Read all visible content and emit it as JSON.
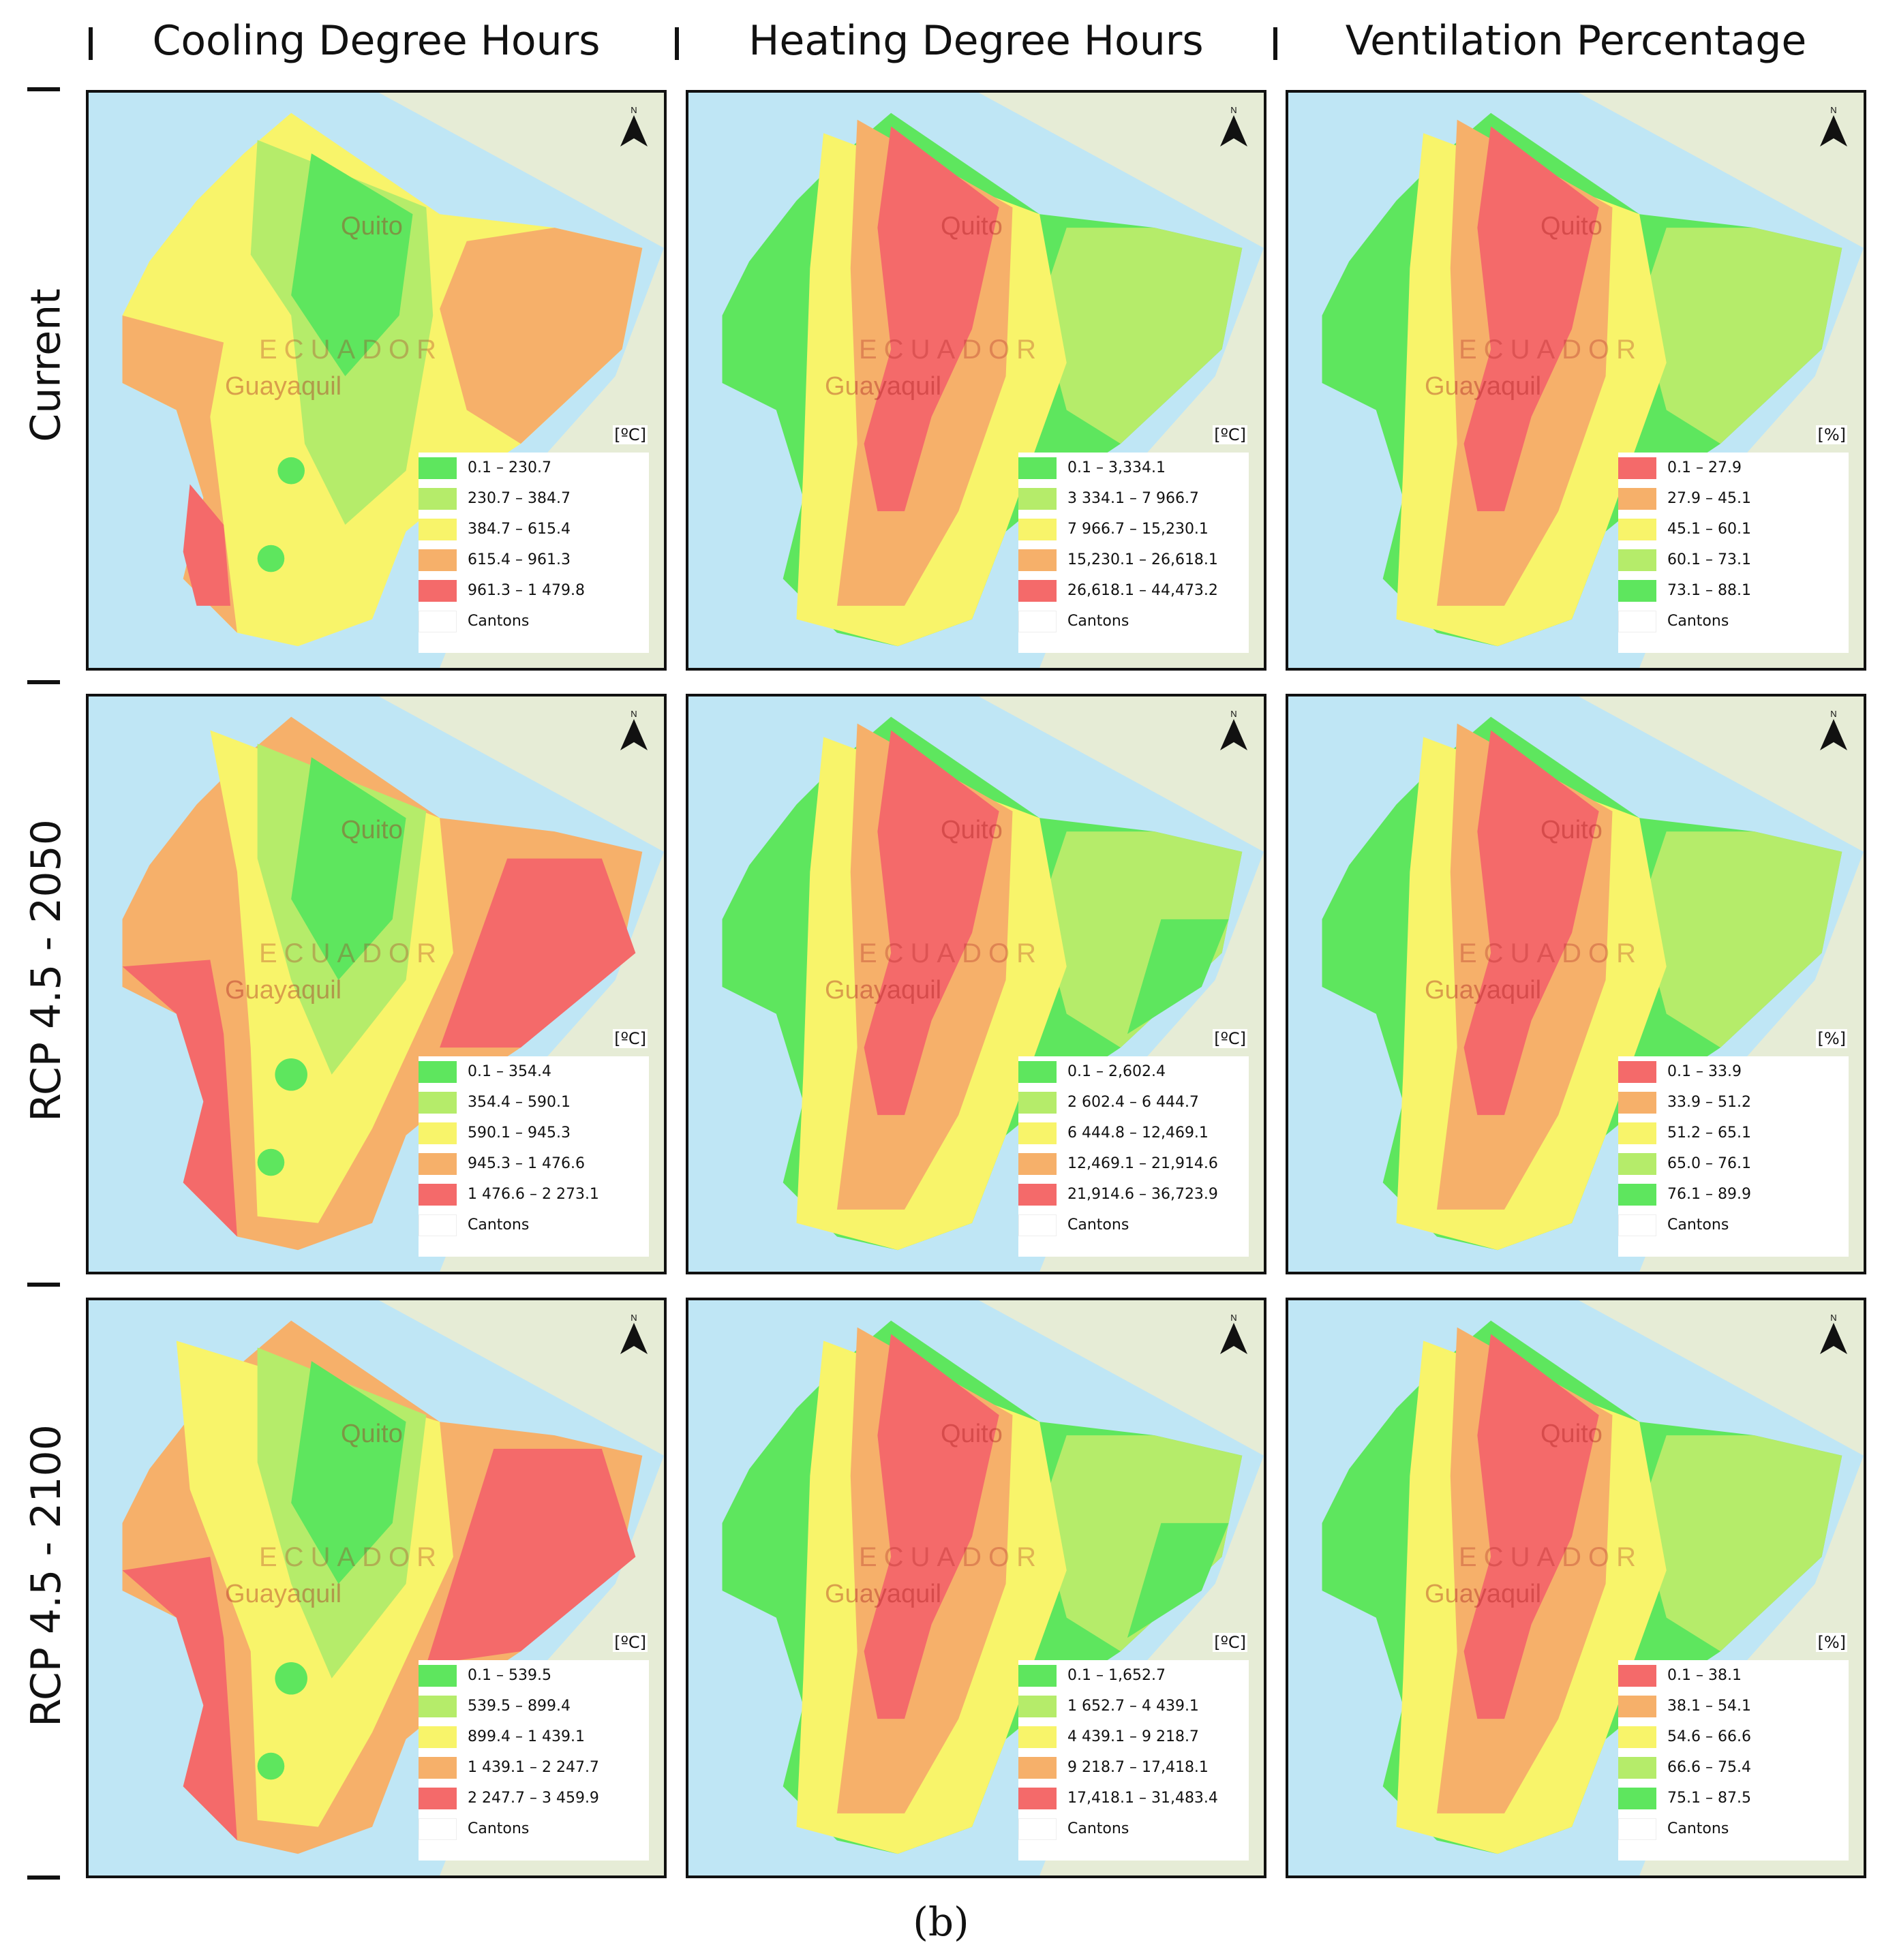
{
  "columns": [
    "Cooling Degree Hours",
    "Heating Degree Hours",
    "Ventilation Percentage"
  ],
  "rows": [
    "Current",
    "RCP 4.5 - 2050",
    "RCP 4.5 - 2100"
  ],
  "map_labels": {
    "capital": "Quito",
    "city": "Guayaquil",
    "country": "ECUADOR",
    "north": "N"
  },
  "colors": {
    "sea": "#bfe6f5",
    "land_other": "#e6ecd6",
    "green": "#5ee65e",
    "light_green": "#b5ec6a",
    "yellow": "#f8f46a",
    "orange": "#f6b06a",
    "red": "#f46a6a"
  },
  "panels": [
    [
      {
        "unit": "[ºC]",
        "legend_colors": [
          "#5ee65e",
          "#b5ec6a",
          "#f8f46a",
          "#f6b06a",
          "#f46a6a"
        ],
        "ranges": [
          "0.1  – 230.7",
          "230.7  – 384.7",
          "384.7  – 615.4",
          "615.4  – 961.3",
          "961.3  – 1 479.8"
        ],
        "cantons": "Cantons"
      },
      {
        "unit": "[ºC]",
        "legend_colors": [
          "#5ee65e",
          "#b5ec6a",
          "#f8f46a",
          "#f6b06a",
          "#f46a6a"
        ],
        "ranges": [
          "0.1  – 3,334.1",
          "3 334.1  – 7 966.7",
          "7 966.7  – 15,230.1",
          "15,230.1  – 26,618.1",
          "26,618.1  – 44,473.2"
        ],
        "cantons": "Cantons"
      },
      {
        "unit": "[%]",
        "legend_colors": [
          "#f46a6a",
          "#f6b06a",
          "#f8f46a",
          "#b5ec6a",
          "#5ee65e"
        ],
        "ranges": [
          "0.1  – 27.9",
          "27.9  – 45.1",
          "45.1  – 60.1",
          "60.1  – 73.1",
          "73.1  – 88.1"
        ],
        "cantons": "Cantons"
      }
    ],
    [
      {
        "unit": "[ºC]",
        "legend_colors": [
          "#5ee65e",
          "#b5ec6a",
          "#f8f46a",
          "#f6b06a",
          "#f46a6a"
        ],
        "ranges": [
          "0.1  – 354.4",
          "354.4  – 590.1",
          "590.1  – 945.3",
          "945.3  – 1 476.6",
          "1 476.6  – 2 273.1"
        ],
        "cantons": "Cantons"
      },
      {
        "unit": "[ºC]",
        "legend_colors": [
          "#5ee65e",
          "#b5ec6a",
          "#f8f46a",
          "#f6b06a",
          "#f46a6a"
        ],
        "ranges": [
          "0.1  – 2,602.4",
          "2 602.4  – 6 444.7",
          "6 444.8  – 12,469.1",
          "12,469.1  – 21,914.6",
          "21,914.6  – 36,723.9"
        ],
        "cantons": "Cantons"
      },
      {
        "unit": "[%]",
        "legend_colors": [
          "#f46a6a",
          "#f6b06a",
          "#f8f46a",
          "#b5ec6a",
          "#5ee65e"
        ],
        "ranges": [
          "0.1  – 33.9",
          "33.9  – 51.2",
          "51.2  – 65.1",
          "65.0  – 76.1",
          "76.1  – 89.9"
        ],
        "cantons": "Cantons"
      }
    ],
    [
      {
        "unit": "[ºC]",
        "legend_colors": [
          "#5ee65e",
          "#b5ec6a",
          "#f8f46a",
          "#f6b06a",
          "#f46a6a"
        ],
        "ranges": [
          "0.1  – 539.5",
          "539.5  – 899.4",
          "899.4  – 1 439.1",
          "1 439.1  – 2 247.7",
          "2 247.7  – 3 459.9"
        ],
        "cantons": "Cantons"
      },
      {
        "unit": "[ºC]",
        "legend_colors": [
          "#5ee65e",
          "#b5ec6a",
          "#f8f46a",
          "#f6b06a",
          "#f46a6a"
        ],
        "ranges": [
          "0.1  – 1,652.7",
          "1 652.7  – 4 439.1",
          "4 439.1  – 9 218.7",
          "9 218.7  – 17,418.1",
          "17,418.1  – 31,483.4"
        ],
        "cantons": "Cantons"
      },
      {
        "unit": "[%]",
        "legend_colors": [
          "#f46a6a",
          "#f6b06a",
          "#f8f46a",
          "#b5ec6a",
          "#5ee65e"
        ],
        "ranges": [
          "0.1  – 38.1",
          "38.1  – 54.1",
          "54.6  – 66.6",
          "66.6  – 75.4",
          "75.1  – 87.5"
        ],
        "cantons": "Cantons"
      }
    ]
  ],
  "caption": "(b)"
}
